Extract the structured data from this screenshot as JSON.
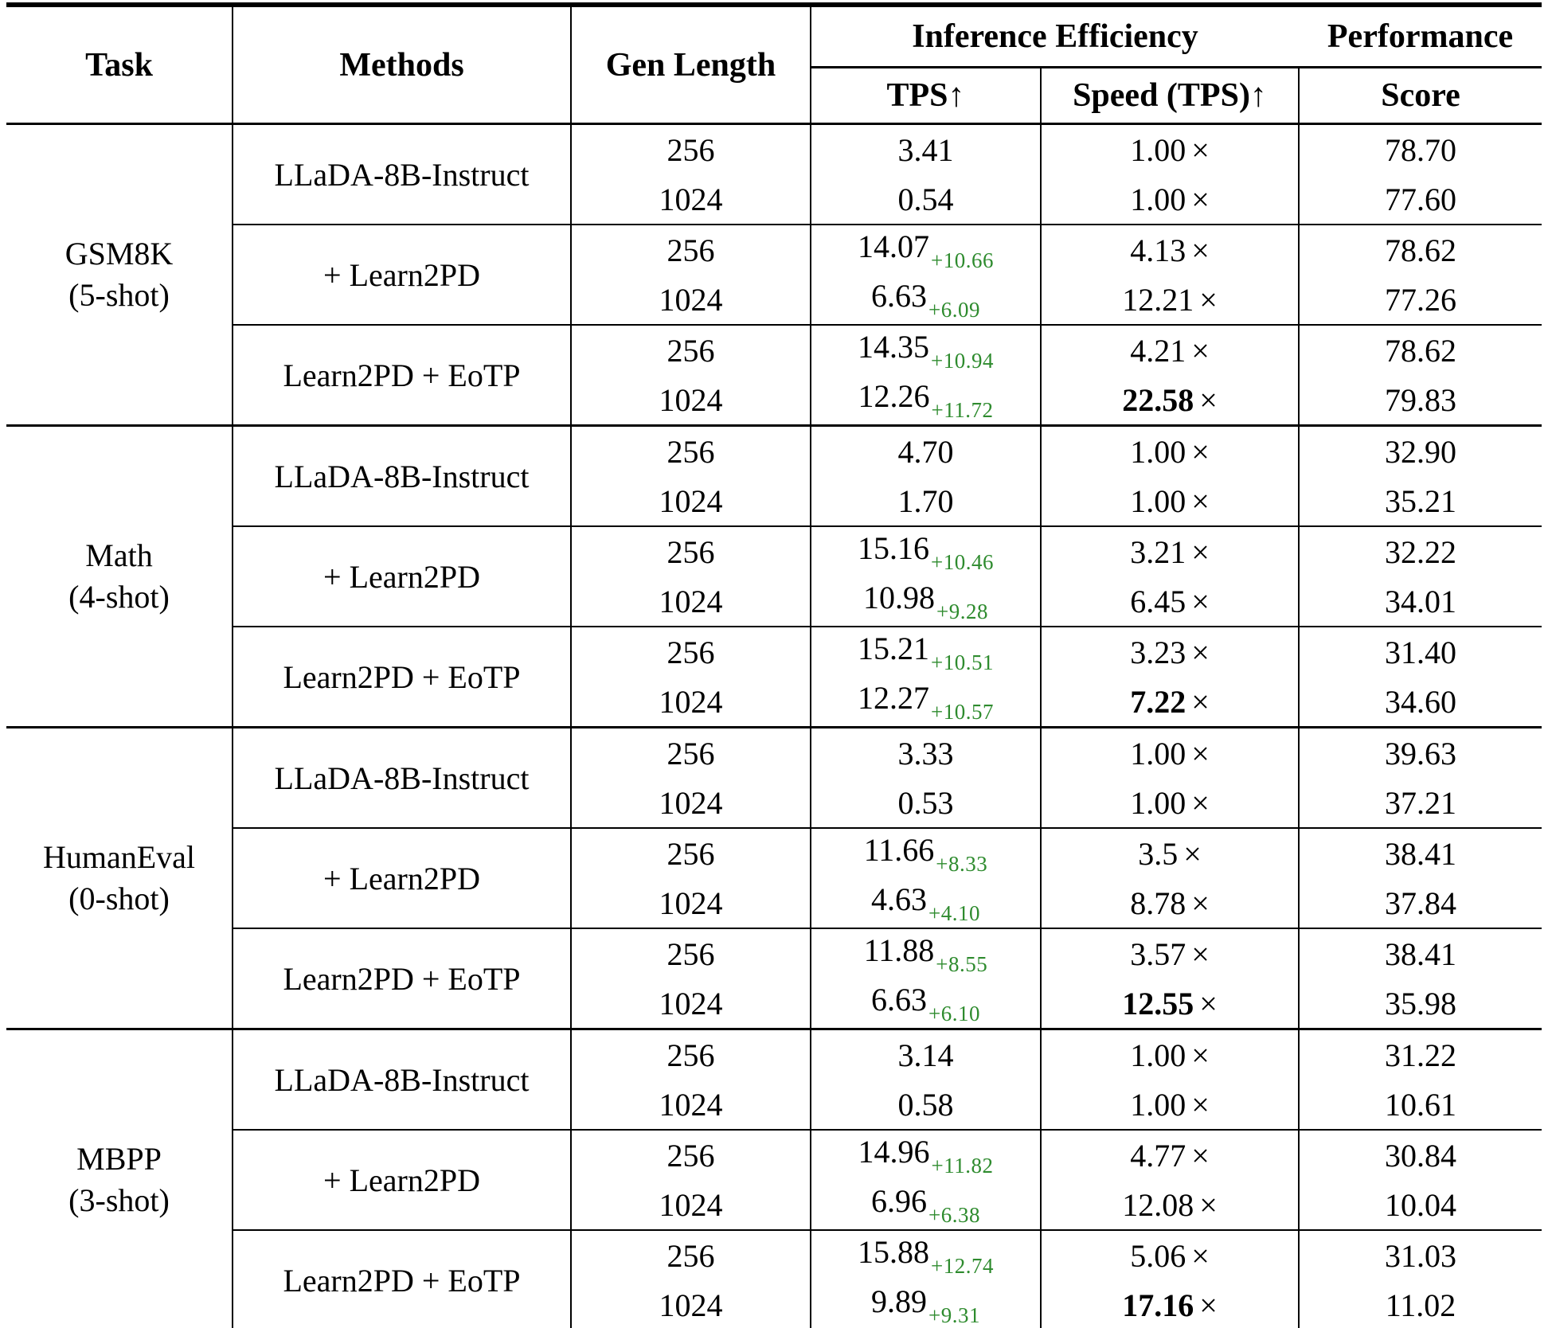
{
  "table": {
    "accent_green": "#2e8b2e",
    "times_mark": "×",
    "header": {
      "task": "Task",
      "methods": "Methods",
      "gen_length": "Gen Length",
      "inference_efficiency": "Inference Efficiency",
      "performance": "Performance",
      "tps": "TPS↑",
      "speed": "Speed (TPS)↑",
      "score": "Score"
    },
    "tasks": [
      {
        "name": "GSM8K",
        "shots": "(5-shot)",
        "methods": [
          {
            "label": "LLaDA-8B-Instruct",
            "rows": [
              {
                "gen_length": "256",
                "tps": "3.41",
                "tps_gain": "",
                "speed": "1.00",
                "speed_bold": false,
                "score": "78.70"
              },
              {
                "gen_length": "1024",
                "tps": "0.54",
                "tps_gain": "",
                "speed": "1.00",
                "speed_bold": false,
                "score": "77.60"
              }
            ]
          },
          {
            "label": "+ Learn2PD",
            "rows": [
              {
                "gen_length": "256",
                "tps": "14.07",
                "tps_gain": "+10.66",
                "speed": "4.13",
                "speed_bold": false,
                "score": "78.62"
              },
              {
                "gen_length": "1024",
                "tps": "6.63",
                "tps_gain": "+6.09",
                "speed": "12.21",
                "speed_bold": false,
                "score": "77.26"
              }
            ]
          },
          {
            "label": "Learn2PD + EoTP",
            "rows": [
              {
                "gen_length": "256",
                "tps": "14.35",
                "tps_gain": "+10.94",
                "speed": "4.21",
                "speed_bold": false,
                "score": "78.62"
              },
              {
                "gen_length": "1024",
                "tps": "12.26",
                "tps_gain": "+11.72",
                "speed": "22.58",
                "speed_bold": true,
                "score": "79.83"
              }
            ]
          }
        ]
      },
      {
        "name": "Math",
        "shots": "(4-shot)",
        "methods": [
          {
            "label": "LLaDA-8B-Instruct",
            "rows": [
              {
                "gen_length": "256",
                "tps": "4.70",
                "tps_gain": "",
                "speed": "1.00",
                "speed_bold": false,
                "score": "32.90"
              },
              {
                "gen_length": "1024",
                "tps": "1.70",
                "tps_gain": "",
                "speed": "1.00",
                "speed_bold": false,
                "score": "35.21"
              }
            ]
          },
          {
            "label": "+ Learn2PD",
            "rows": [
              {
                "gen_length": "256",
                "tps": "15.16",
                "tps_gain": "+10.46",
                "speed": "3.21",
                "speed_bold": false,
                "score": "32.22"
              },
              {
                "gen_length": "1024",
                "tps": "10.98",
                "tps_gain": "+9.28",
                "speed": "6.45",
                "speed_bold": false,
                "score": "34.01"
              }
            ]
          },
          {
            "label": "Learn2PD + EoTP",
            "rows": [
              {
                "gen_length": "256",
                "tps": "15.21",
                "tps_gain": "+10.51",
                "speed": "3.23",
                "speed_bold": false,
                "score": "31.40"
              },
              {
                "gen_length": "1024",
                "tps": "12.27",
                "tps_gain": "+10.57",
                "speed": "7.22",
                "speed_bold": true,
                "score": "34.60"
              }
            ]
          }
        ]
      },
      {
        "name": "HumanEval",
        "shots": "(0-shot)",
        "methods": [
          {
            "label": "LLaDA-8B-Instruct",
            "rows": [
              {
                "gen_length": "256",
                "tps": "3.33",
                "tps_gain": "",
                "speed": "1.00",
                "speed_bold": false,
                "score": "39.63"
              },
              {
                "gen_length": "1024",
                "tps": "0.53",
                "tps_gain": "",
                "speed": "1.00",
                "speed_bold": false,
                "score": "37.21"
              }
            ]
          },
          {
            "label": "+ Learn2PD",
            "rows": [
              {
                "gen_length": "256",
                "tps": "11.66",
                "tps_gain": "+8.33",
                "speed": "3.5",
                "speed_bold": false,
                "score": "38.41"
              },
              {
                "gen_length": "1024",
                "tps": "4.63",
                "tps_gain": "+4.10",
                "speed": "8.78",
                "speed_bold": false,
                "score": "37.84"
              }
            ]
          },
          {
            "label": "Learn2PD + EoTP",
            "rows": [
              {
                "gen_length": "256",
                "tps": "11.88",
                "tps_gain": "+8.55",
                "speed": "3.57",
                "speed_bold": false,
                "score": "38.41"
              },
              {
                "gen_length": "1024",
                "tps": "6.63",
                "tps_gain": "+6.10",
                "speed": "12.55",
                "speed_bold": true,
                "score": "35.98"
              }
            ]
          }
        ]
      },
      {
        "name": "MBPP",
        "shots": "(3-shot)",
        "methods": [
          {
            "label": "LLaDA-8B-Instruct",
            "rows": [
              {
                "gen_length": "256",
                "tps": "3.14",
                "tps_gain": "",
                "speed": "1.00",
                "speed_bold": false,
                "score": "31.22"
              },
              {
                "gen_length": "1024",
                "tps": "0.58",
                "tps_gain": "",
                "speed": "1.00",
                "speed_bold": false,
                "score": "10.61"
              }
            ]
          },
          {
            "label": "+ Learn2PD",
            "rows": [
              {
                "gen_length": "256",
                "tps": "14.96",
                "tps_gain": "+11.82",
                "speed": "4.77",
                "speed_bold": false,
                "score": "30.84"
              },
              {
                "gen_length": "1024",
                "tps": "6.96",
                "tps_gain": "+6.38",
                "speed": "12.08",
                "speed_bold": false,
                "score": "10.04"
              }
            ]
          },
          {
            "label": "Learn2PD + EoTP",
            "rows": [
              {
                "gen_length": "256",
                "tps": "15.88",
                "tps_gain": "+12.74",
                "speed": "5.06",
                "speed_bold": false,
                "score": "31.03"
              },
              {
                "gen_length": "1024",
                "tps": "9.89",
                "tps_gain": "+9.31",
                "speed": "17.16",
                "speed_bold": true,
                "score": "11.02"
              }
            ]
          }
        ]
      }
    ]
  }
}
